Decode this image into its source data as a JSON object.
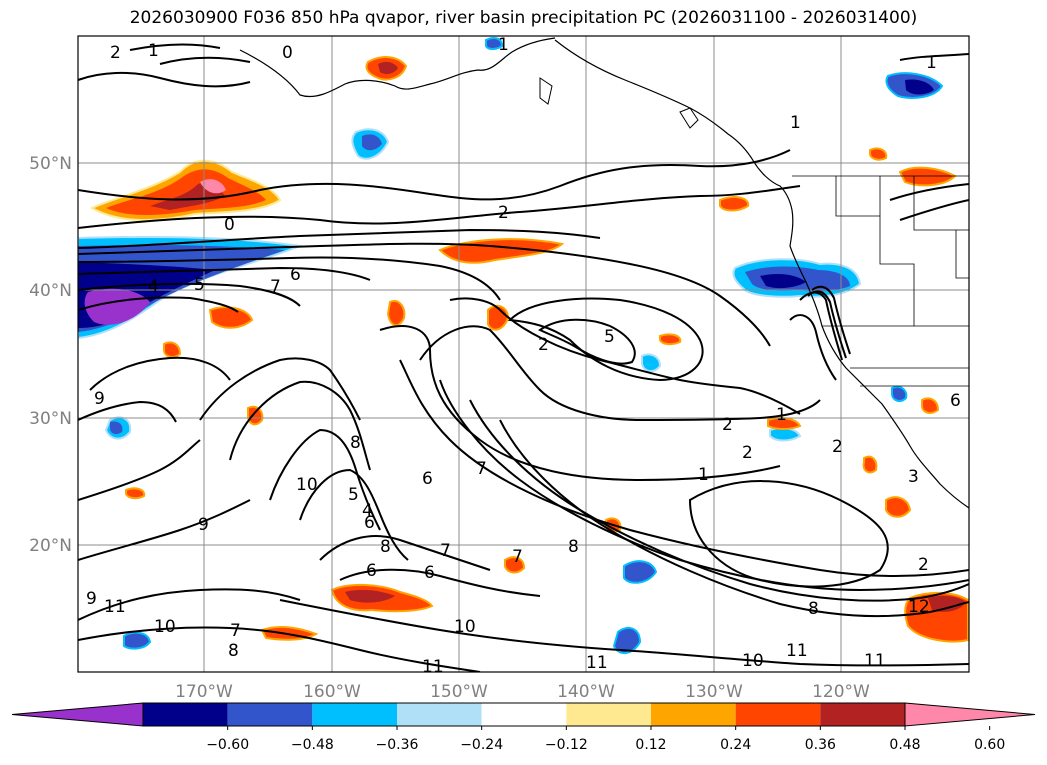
{
  "title": "2026030900 F036 850 hPa qvapor, river basin precipitation PC (2026031100 - 2026031400)",
  "axes": {
    "lat_ticks": [
      "50°N",
      "40°N",
      "30°N",
      "20°N"
    ],
    "lon_ticks": [
      "170°W",
      "160°W",
      "150°W",
      "140°W",
      "130°W",
      "120°W"
    ]
  },
  "colorbar": {
    "colors": [
      "#9932cc",
      "#00008b",
      "#3355cc",
      "#00bfff",
      "#b0e0f8",
      "#ffffff",
      "#ffe990",
      "#ffa500",
      "#ff4500",
      "#b22222",
      "#ff88aa"
    ],
    "tick_labels": [
      "−0.60",
      "−0.48",
      "−0.36",
      "−0.24",
      "−0.12",
      "0.12",
      "0.24",
      "0.36",
      "0.48",
      "0.60"
    ]
  },
  "contour_labels": [
    "2",
    "1",
    "0",
    "1",
    "1",
    "1",
    "2",
    "0",
    "6",
    "7",
    "4",
    "5",
    "5",
    "2",
    "8",
    "6",
    "4",
    "5",
    "1",
    "2",
    "2",
    "1",
    "2",
    "7",
    "6",
    "9",
    "10",
    "9",
    "8",
    "7",
    "6",
    "8",
    "7",
    "6",
    "8",
    "9",
    "11",
    "10",
    "10",
    "7",
    "8",
    "11",
    "11",
    "10",
    "11",
    "11",
    "12",
    "2",
    "3",
    "6"
  ]
}
